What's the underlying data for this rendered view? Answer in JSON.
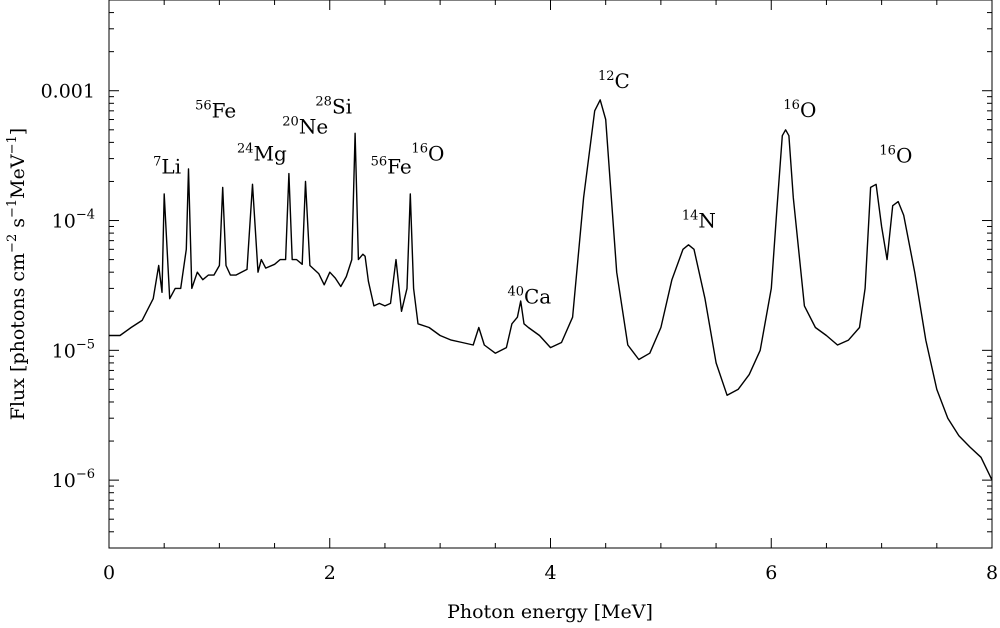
{
  "chart_data": {
    "type": "line",
    "title": "",
    "xlabel": "Photon energy [MeV]",
    "ylabel": "Flux [photons cm−2 s−1 MeV−1]",
    "ylabel_parts": {
      "pre": "Flux [photons cm",
      "sup1": "−2",
      "mid": " s",
      "sup2": "−1",
      "post": "MeV",
      "sup3": "−1",
      "end": "]"
    },
    "xlim": [
      0,
      8
    ],
    "ylim": [
      3e-07,
      0.005
    ],
    "yscale": "log",
    "grid": false,
    "x_ticks": [
      {
        "value": 0,
        "label": "0"
      },
      {
        "value": 2,
        "label": "2"
      },
      {
        "value": 4,
        "label": "4"
      },
      {
        "value": 6,
        "label": "6"
      },
      {
        "value": 8,
        "label": "8"
      }
    ],
    "y_ticks": [
      {
        "value": 0.001,
        "base": "0.001",
        "exp": ""
      },
      {
        "value": 0.0001,
        "base": "10",
        "exp": "−4"
      },
      {
        "value": 1e-05,
        "base": "10",
        "exp": "−5"
      },
      {
        "value": 1e-06,
        "base": "10",
        "exp": "−6"
      }
    ],
    "series": [
      {
        "color": "#000000",
        "x": [
          0.0,
          0.1,
          0.2,
          0.3,
          0.4,
          0.45,
          0.48,
          0.5,
          0.55,
          0.6,
          0.65,
          0.7,
          0.72,
          0.75,
          0.8,
          0.85,
          0.9,
          0.95,
          1.0,
          1.03,
          1.06,
          1.1,
          1.15,
          1.2,
          1.25,
          1.3,
          1.35,
          1.38,
          1.42,
          1.5,
          1.55,
          1.6,
          1.63,
          1.66,
          1.7,
          1.75,
          1.78,
          1.82,
          1.9,
          1.95,
          2.0,
          2.05,
          2.1,
          2.15,
          2.2,
          2.23,
          2.26,
          2.3,
          2.32,
          2.35,
          2.4,
          2.45,
          2.5,
          2.55,
          2.6,
          2.65,
          2.7,
          2.73,
          2.76,
          2.8,
          2.9,
          3.0,
          3.1,
          3.2,
          3.3,
          3.35,
          3.4,
          3.5,
          3.6,
          3.65,
          3.7,
          3.73,
          3.76,
          3.8,
          3.9,
          4.0,
          4.1,
          4.2,
          4.3,
          4.4,
          4.45,
          4.5,
          4.6,
          4.7,
          4.8,
          4.9,
          5.0,
          5.1,
          5.2,
          5.25,
          5.3,
          5.4,
          5.5,
          5.6,
          5.7,
          5.8,
          5.9,
          6.0,
          6.05,
          6.1,
          6.13,
          6.16,
          6.2,
          6.3,
          6.4,
          6.5,
          6.6,
          6.7,
          6.8,
          6.85,
          6.9,
          6.95,
          7.0,
          7.05,
          7.1,
          7.15,
          7.2,
          7.3,
          7.4,
          7.5,
          7.6,
          7.7,
          7.8,
          7.9,
          8.0
        ],
        "y": [
          1.3e-05,
          1.3e-05,
          1.5e-05,
          1.7e-05,
          2.5e-05,
          4.5e-05,
          2.8e-05,
          0.00016,
          2.5e-05,
          3e-05,
          3e-05,
          6e-05,
          0.00025,
          3e-05,
          4e-05,
          3.5e-05,
          3.8e-05,
          3.8e-05,
          4.5e-05,
          0.00018,
          4.5e-05,
          3.8e-05,
          3.8e-05,
          4e-05,
          4.2e-05,
          0.00019,
          4e-05,
          5e-05,
          4.3e-05,
          4.6e-05,
          5e-05,
          5e-05,
          0.00023,
          5e-05,
          5e-05,
          4.6e-05,
          0.0002,
          4.5e-05,
          3.9e-05,
          3.2e-05,
          4e-05,
          3.6e-05,
          3.1e-05,
          3.7e-05,
          5e-05,
          0.00047,
          5e-05,
          5.5e-05,
          5.3e-05,
          3.4e-05,
          2.2e-05,
          2.3e-05,
          2.2e-05,
          2.3e-05,
          5e-05,
          2e-05,
          3e-05,
          0.00016,
          3e-05,
          1.6e-05,
          1.5e-05,
          1.3e-05,
          1.2e-05,
          1.15e-05,
          1.1e-05,
          1.5e-05,
          1.1e-05,
          9.5e-06,
          1.05e-05,
          1.6e-05,
          1.8e-05,
          2.4e-05,
          1.6e-05,
          1.5e-05,
          1.3e-05,
          1.05e-05,
          1.15e-05,
          1.8e-05,
          0.00015,
          0.0007,
          0.00085,
          0.0006,
          4e-05,
          1.1e-05,
          8.5e-06,
          9.5e-06,
          1.5e-05,
          3.5e-05,
          6e-05,
          6.5e-05,
          6e-05,
          2.5e-05,
          8e-06,
          4.5e-06,
          5e-06,
          6.5e-06,
          1e-05,
          3e-05,
          0.00012,
          0.00045,
          0.0005,
          0.00045,
          0.00015,
          2.2e-05,
          1.5e-05,
          1.3e-05,
          1.1e-05,
          1.2e-05,
          1.5e-05,
          3e-05,
          0.00018,
          0.00019,
          9e-05,
          5e-05,
          0.00013,
          0.00014,
          0.00011,
          4e-05,
          1.2e-05,
          5e-06,
          3e-06,
          2.2e-06,
          1.8e-06,
          1.5e-06,
          1e-06
        ]
      }
    ],
    "annotations": [
      {
        "sup": "7",
        "text": "Li",
        "x": 0.4,
        "y": 0.00023
      },
      {
        "sup": "56",
        "text": "Fe",
        "x": 0.78,
        "y": 0.00062
      },
      {
        "sup": "24",
        "text": "Mg",
        "x": 1.16,
        "y": 0.00029
      },
      {
        "sup": "20",
        "text": "Ne",
        "x": 1.57,
        "y": 0.00047
      },
      {
        "sup": "28",
        "text": "Si",
        "x": 1.87,
        "y": 0.00067
      },
      {
        "sup": "56",
        "text": "Fe",
        "x": 2.37,
        "y": 0.00023
      },
      {
        "sup": "16",
        "text": "O",
        "x": 2.74,
        "y": 0.00029
      },
      {
        "sup": "40",
        "text": "Ca",
        "x": 3.61,
        "y": 2.3e-05
      },
      {
        "sup": "12",
        "text": "C",
        "x": 4.43,
        "y": 0.00105
      },
      {
        "sup": "14",
        "text": "N",
        "x": 5.19,
        "y": 8.8e-05
      },
      {
        "sup": "16",
        "text": "O",
        "x": 6.11,
        "y": 0.00063
      },
      {
        "sup": "16",
        "text": "O",
        "x": 6.98,
        "y": 0.00028
      }
    ]
  }
}
